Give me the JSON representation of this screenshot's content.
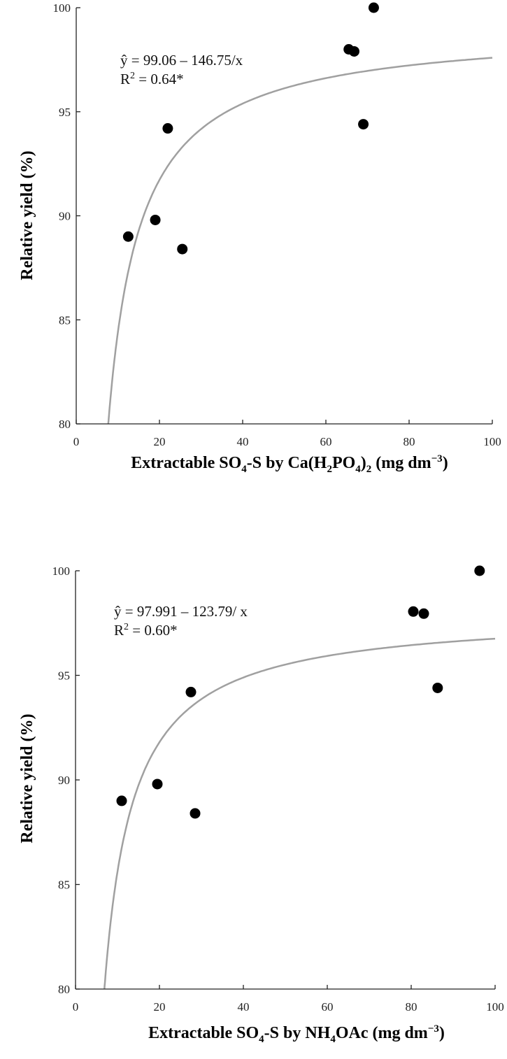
{
  "chart_data": [
    {
      "type": "scatter",
      "title": "",
      "xlabel": "Extractable SO4-S by Ca(H2PO4)2 (mg dm−3)",
      "xlabel_parts": {
        "a": "Extractable SO",
        "sub1": "4",
        "b": "-S by Ca(H",
        "sub2": "2",
        "c": "PO",
        "sub3": "4",
        "d": ")",
        "sub4": "2",
        "e": " (mg dm",
        "sup": "−3",
        "f": ")"
      },
      "ylabel": "Relative yield (%)",
      "xlim": [
        0,
        100
      ],
      "ylim": [
        80,
        100
      ],
      "xticks": [
        "0",
        "20",
        "40",
        "60",
        "80",
        "100"
      ],
      "yticks": [
        "80",
        "85",
        "90",
        "95",
        "100"
      ],
      "grid": false,
      "points": [
        {
          "x": 12.5,
          "y": 89.0
        },
        {
          "x": 19.0,
          "y": 89.8
        },
        {
          "x": 22.0,
          "y": 94.2
        },
        {
          "x": 25.5,
          "y": 88.4
        },
        {
          "x": 65.5,
          "y": 98.0
        },
        {
          "x": 66.8,
          "y": 97.9
        },
        {
          "x": 69.0,
          "y": 94.4
        },
        {
          "x": 71.5,
          "y": 100.0
        }
      ],
      "fit": {
        "model": "y = a - b/x",
        "a": 99.06,
        "b": 146.75,
        "color": "#a0a0a0"
      },
      "annotation": {
        "equation": "ŷ = 99.06 – 146.75/x",
        "r2_prefix": "R",
        "r2_sup": "2",
        "r2_value": " = 0.64*"
      }
    },
    {
      "type": "scatter",
      "title": "",
      "xlabel": "Extractable SO4-S by NH4OAc (mg dm−3)",
      "xlabel_parts": {
        "a": "Extractable SO",
        "sub1": "4",
        "b": "-S by NH",
        "sub2": "4",
        "c": "OAc (mg dm",
        "sup": "−3",
        "d": ")"
      },
      "ylabel": "Relative yield (%)",
      "xlim": [
        0,
        100
      ],
      "ylim": [
        80,
        100
      ],
      "xticks": [
        "0",
        "20",
        "40",
        "60",
        "80",
        "100"
      ],
      "yticks": [
        "80",
        "85",
        "90",
        "95",
        "100"
      ],
      "grid": false,
      "points": [
        {
          "x": 11.0,
          "y": 89.0
        },
        {
          "x": 19.5,
          "y": 89.8
        },
        {
          "x": 27.5,
          "y": 94.2
        },
        {
          "x": 28.5,
          "y": 88.4
        },
        {
          "x": 80.5,
          "y": 98.05
        },
        {
          "x": 83.0,
          "y": 97.95
        },
        {
          "x": 86.3,
          "y": 94.4
        },
        {
          "x": 96.3,
          "y": 100.0
        }
      ],
      "fit": {
        "model": "y = a - b/x",
        "a": 97.991,
        "b": 123.79,
        "color": "#a0a0a0"
      },
      "annotation": {
        "equation": "ŷ = 97.991 – 123.79/ x",
        "r2_prefix": "R",
        "r2_sup": "2",
        "r2_value": " = 0.60*"
      }
    }
  ],
  "colors": {
    "axis": "#222222",
    "points": "#000000",
    "fit_line": "#a0a0a0"
  }
}
